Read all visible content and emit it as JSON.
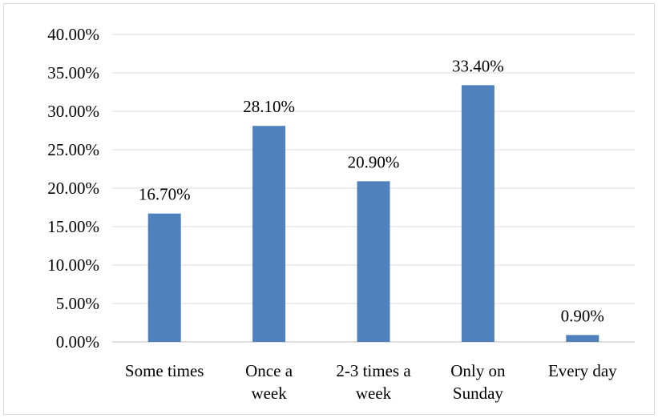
{
  "chart_data": {
    "type": "bar",
    "title": "",
    "xlabel": "",
    "ylabel": "",
    "categories": [
      [
        "Some times"
      ],
      [
        "Once a",
        "week"
      ],
      [
        "2-3 times a",
        "week"
      ],
      [
        "Only on",
        "Sunday"
      ],
      [
        "Every day"
      ]
    ],
    "values": [
      16.7,
      28.1,
      20.9,
      33.4,
      0.9
    ],
    "data_labels": [
      "16.70%",
      "28.10%",
      "20.90%",
      "33.40%",
      "0.90%"
    ],
    "ylim": [
      0,
      40
    ],
    "y_ticks": [
      0,
      5,
      10,
      15,
      20,
      25,
      30,
      35,
      40
    ],
    "y_tick_labels": [
      "0.00%",
      "5.00%",
      "10.00%",
      "15.00%",
      "20.00%",
      "25.00%",
      "30.00%",
      "35.00%",
      "40.00%"
    ],
    "grid": true,
    "legend": "none",
    "bar_color": "#4f81bd"
  }
}
